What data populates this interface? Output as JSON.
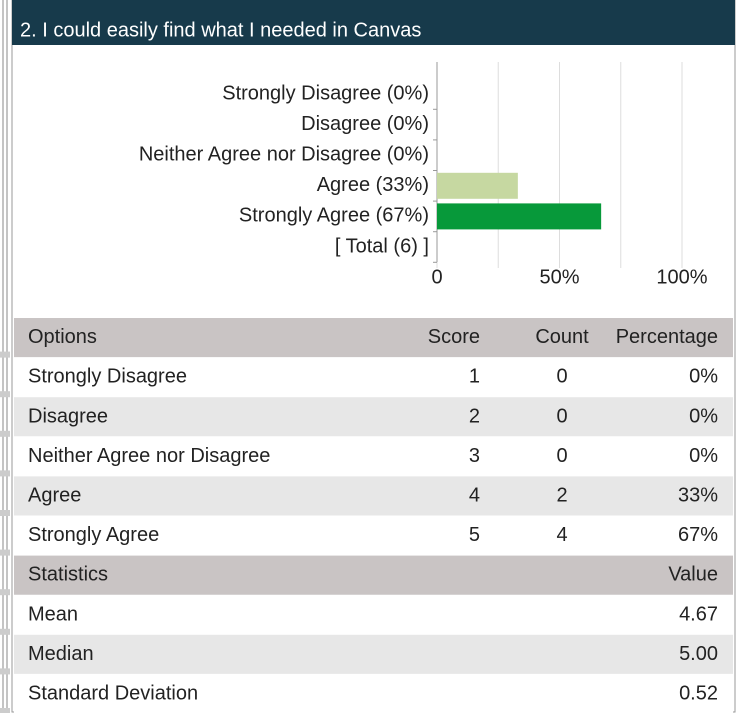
{
  "header": {
    "title": "2. I could easily find what I needed in Canvas"
  },
  "chart_data": {
    "type": "bar",
    "orientation": "horizontal",
    "categories": [
      "Strongly Disagree (0%)",
      "Disagree (0%)",
      "Neither Agree nor Disagree (0%)",
      "Agree (33%)",
      "Strongly Agree (67%)",
      "[ Total (6) ]"
    ],
    "values": [
      0,
      0,
      0,
      33,
      67,
      null
    ],
    "colors": [
      "#c6d8a1",
      "#c6d8a1",
      "#c6d8a1",
      "#c6d8a1",
      "#07993a",
      null
    ],
    "xlim": [
      0,
      100
    ],
    "xticks": [
      0,
      {
        "value": 50,
        "label": "50%"
      },
      {
        "value": 100,
        "label": "100%"
      }
    ],
    "minor_xticks": [
      25,
      75
    ],
    "grid": true
  },
  "table": {
    "header": [
      "Options",
      "Score",
      "Count",
      "Percentage"
    ],
    "rows": [
      [
        "Strongly Disagree",
        1,
        0,
        "0%"
      ],
      [
        "Disagree",
        2,
        0,
        "0%"
      ],
      [
        "Neither Agree nor Disagree",
        3,
        0,
        "0%"
      ],
      [
        "Agree",
        4,
        2,
        "33%"
      ],
      [
        "Strongly Agree",
        5,
        4,
        "67%"
      ]
    ]
  },
  "statistics": {
    "header": [
      "Statistics",
      "Value"
    ],
    "rows": [
      [
        "Mean",
        "4.67"
      ],
      [
        "Median",
        "5.00"
      ],
      [
        "Standard Deviation",
        "0.52"
      ]
    ]
  }
}
